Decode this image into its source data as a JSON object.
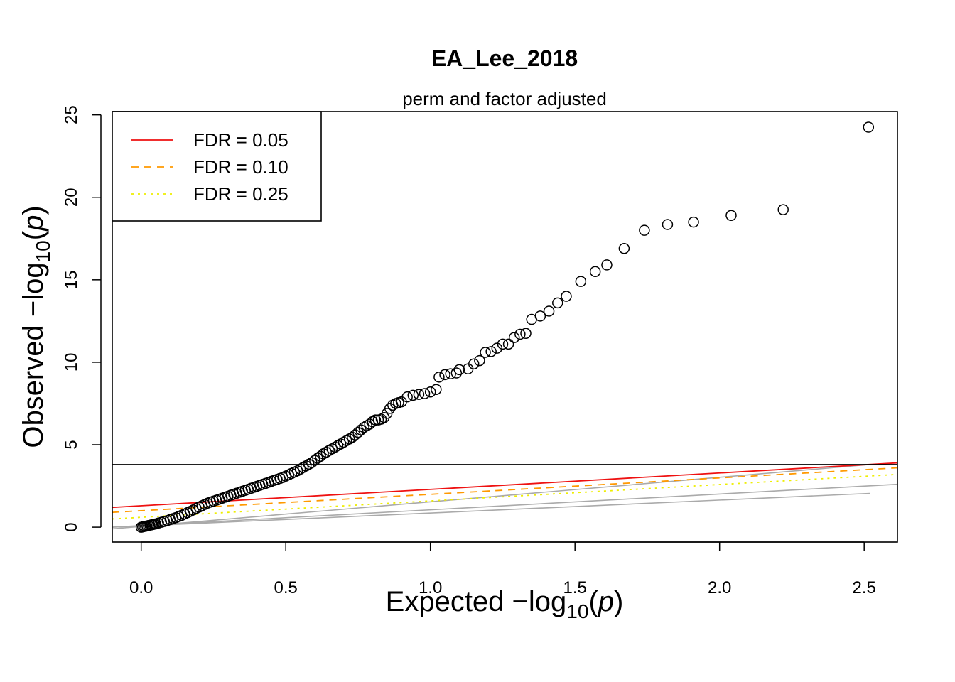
{
  "chart_data": {
    "type": "scatter",
    "title": "EA_Lee_2018",
    "subtitle": "perm and factor adjusted",
    "xlabel": {
      "prefix": "Expected  −log",
      "sub": "10",
      "paren_open": "(",
      "var": "p",
      "paren_close": ")"
    },
    "ylabel": {
      "prefix": "Observed  −log",
      "sub": "10",
      "paren_open": "(",
      "var": "p",
      "paren_close": ")"
    },
    "xlim": [
      -0.1,
      2.615
    ],
    "ylim": [
      -0.9,
      25.2
    ],
    "x_ticks": [
      {
        "value": 0.0,
        "label": "0.0"
      },
      {
        "value": 0.5,
        "label": "0.5"
      },
      {
        "value": 1.0,
        "label": "1.0"
      },
      {
        "value": 1.5,
        "label": "1.5"
      },
      {
        "value": 2.0,
        "label": "2.0"
      },
      {
        "value": 2.5,
        "label": "2.5"
      }
    ],
    "y_ticks": [
      {
        "value": 0,
        "label": "0"
      },
      {
        "value": 5,
        "label": "5"
      },
      {
        "value": 10,
        "label": "10"
      },
      {
        "value": 15,
        "label": "15"
      },
      {
        "value": 20,
        "label": "20"
      },
      {
        "value": 25,
        "label": "25"
      }
    ],
    "grid": false,
    "legend_position": "top-left",
    "legend": [
      {
        "label": "FDR = 0.05",
        "color": "#ee1111",
        "dash": "solid"
      },
      {
        "label": "FDR = 0.10",
        "color": "#ff9900",
        "dash": "dashed"
      },
      {
        "label": "FDR = 0.25",
        "color": "#eeee00",
        "dash": "dotted"
      }
    ],
    "threshold_line": {
      "y": 3.8,
      "color": "#000000"
    },
    "fdr_lines": [
      {
        "name": "FDR = 0.05",
        "color": "#ee1111",
        "dash": "solid",
        "x": [
          -0.1,
          2.615
        ],
        "y": [
          1.2,
          3.9
        ]
      },
      {
        "name": "FDR = 0.10",
        "color": "#ff9900",
        "dash": "dashed",
        "x": [
          -0.1,
          2.615
        ],
        "y": [
          0.9,
          3.6
        ]
      },
      {
        "name": "FDR = 0.25",
        "color": "#eeee00",
        "dash": "dotted",
        "x": [
          -0.1,
          2.615
        ],
        "y": [
          0.5,
          3.2
        ]
      }
    ],
    "reference_lines": [
      {
        "color": "#aaaaaa",
        "x": [
          -0.1,
          2.52
        ],
        "y": [
          -0.1,
          3.8
        ]
      },
      {
        "color": "#aaaaaa",
        "x": [
          -0.1,
          2.615
        ],
        "y": [
          0.0,
          2.6
        ]
      },
      {
        "color": "#aaaaaa",
        "x": [
          -0.1,
          2.52
        ],
        "y": [
          0.0,
          2.05
        ]
      }
    ],
    "series": [
      {
        "marker": "open-circle",
        "points": [
          [
            0.0,
            0.0
          ],
          [
            0.005,
            0.02
          ],
          [
            0.01,
            0.04
          ],
          [
            0.015,
            0.06
          ],
          [
            0.02,
            0.08
          ],
          [
            0.025,
            0.1
          ],
          [
            0.03,
            0.12
          ],
          [
            0.035,
            0.14
          ],
          [
            0.04,
            0.16
          ],
          [
            0.045,
            0.18
          ],
          [
            0.05,
            0.2
          ],
          [
            0.06,
            0.25
          ],
          [
            0.07,
            0.3
          ],
          [
            0.08,
            0.35
          ],
          [
            0.09,
            0.4
          ],
          [
            0.1,
            0.46
          ],
          [
            0.11,
            0.52
          ],
          [
            0.12,
            0.58
          ],
          [
            0.13,
            0.65
          ],
          [
            0.14,
            0.72
          ],
          [
            0.15,
            0.8
          ],
          [
            0.16,
            0.88
          ],
          [
            0.17,
            0.96
          ],
          [
            0.18,
            1.05
          ],
          [
            0.19,
            1.14
          ],
          [
            0.2,
            1.22
          ],
          [
            0.21,
            1.3
          ],
          [
            0.22,
            1.38
          ],
          [
            0.23,
            1.46
          ],
          [
            0.24,
            1.52
          ],
          [
            0.25,
            1.58
          ],
          [
            0.26,
            1.64
          ],
          [
            0.27,
            1.7
          ],
          [
            0.28,
            1.76
          ],
          [
            0.29,
            1.82
          ],
          [
            0.3,
            1.88
          ],
          [
            0.31,
            1.94
          ],
          [
            0.32,
            2.0
          ],
          [
            0.33,
            2.06
          ],
          [
            0.34,
            2.12
          ],
          [
            0.35,
            2.18
          ],
          [
            0.36,
            2.24
          ],
          [
            0.37,
            2.3
          ],
          [
            0.38,
            2.36
          ],
          [
            0.39,
            2.42
          ],
          [
            0.4,
            2.48
          ],
          [
            0.41,
            2.54
          ],
          [
            0.42,
            2.6
          ],
          [
            0.43,
            2.66
          ],
          [
            0.44,
            2.72
          ],
          [
            0.45,
            2.78
          ],
          [
            0.46,
            2.84
          ],
          [
            0.47,
            2.9
          ],
          [
            0.48,
            2.96
          ],
          [
            0.49,
            3.02
          ],
          [
            0.5,
            3.1
          ],
          [
            0.51,
            3.18
          ],
          [
            0.52,
            3.26
          ],
          [
            0.53,
            3.34
          ],
          [
            0.54,
            3.42
          ],
          [
            0.55,
            3.52
          ],
          [
            0.56,
            3.62
          ],
          [
            0.57,
            3.72
          ],
          [
            0.58,
            3.82
          ],
          [
            0.59,
            3.92
          ],
          [
            0.6,
            4.05
          ],
          [
            0.61,
            4.18
          ],
          [
            0.62,
            4.3
          ],
          [
            0.63,
            4.45
          ],
          [
            0.64,
            4.55
          ],
          [
            0.65,
            4.65
          ],
          [
            0.66,
            4.75
          ],
          [
            0.67,
            4.85
          ],
          [
            0.68,
            4.95
          ],
          [
            0.69,
            5.05
          ],
          [
            0.7,
            5.15
          ],
          [
            0.71,
            5.25
          ],
          [
            0.72,
            5.35
          ],
          [
            0.73,
            5.45
          ],
          [
            0.74,
            5.6
          ],
          [
            0.75,
            5.75
          ],
          [
            0.76,
            5.9
          ],
          [
            0.77,
            6.05
          ],
          [
            0.78,
            6.15
          ],
          [
            0.79,
            6.25
          ],
          [
            0.8,
            6.4
          ],
          [
            0.81,
            6.5
          ],
          [
            0.82,
            6.5
          ],
          [
            0.83,
            6.55
          ],
          [
            0.84,
            6.65
          ],
          [
            0.85,
            6.9
          ],
          [
            0.86,
            7.2
          ],
          [
            0.87,
            7.4
          ],
          [
            0.88,
            7.5
          ],
          [
            0.89,
            7.55
          ],
          [
            0.9,
            7.6
          ],
          [
            0.92,
            7.9
          ],
          [
            0.94,
            8.0
          ],
          [
            0.96,
            8.05
          ],
          [
            0.98,
            8.1
          ],
          [
            1.0,
            8.2
          ],
          [
            1.02,
            8.35
          ],
          [
            1.03,
            9.1
          ],
          [
            1.05,
            9.25
          ],
          [
            1.07,
            9.3
          ],
          [
            1.09,
            9.35
          ],
          [
            1.1,
            9.55
          ],
          [
            1.13,
            9.6
          ],
          [
            1.15,
            9.9
          ],
          [
            1.17,
            10.1
          ],
          [
            1.19,
            10.6
          ],
          [
            1.21,
            10.65
          ],
          [
            1.23,
            10.85
          ],
          [
            1.25,
            11.1
          ],
          [
            1.27,
            11.1
          ],
          [
            1.29,
            11.5
          ],
          [
            1.31,
            11.7
          ],
          [
            1.33,
            11.75
          ],
          [
            1.35,
            12.6
          ],
          [
            1.38,
            12.8
          ],
          [
            1.41,
            13.1
          ],
          [
            1.44,
            13.6
          ],
          [
            1.47,
            14.0
          ],
          [
            1.52,
            14.9
          ],
          [
            1.57,
            15.5
          ],
          [
            1.61,
            15.9
          ],
          [
            1.67,
            16.9
          ],
          [
            1.74,
            18.0
          ],
          [
            1.82,
            18.35
          ],
          [
            1.91,
            18.5
          ],
          [
            2.04,
            18.9
          ],
          [
            2.22,
            19.25
          ],
          [
            2.515,
            24.25
          ]
        ]
      }
    ]
  }
}
